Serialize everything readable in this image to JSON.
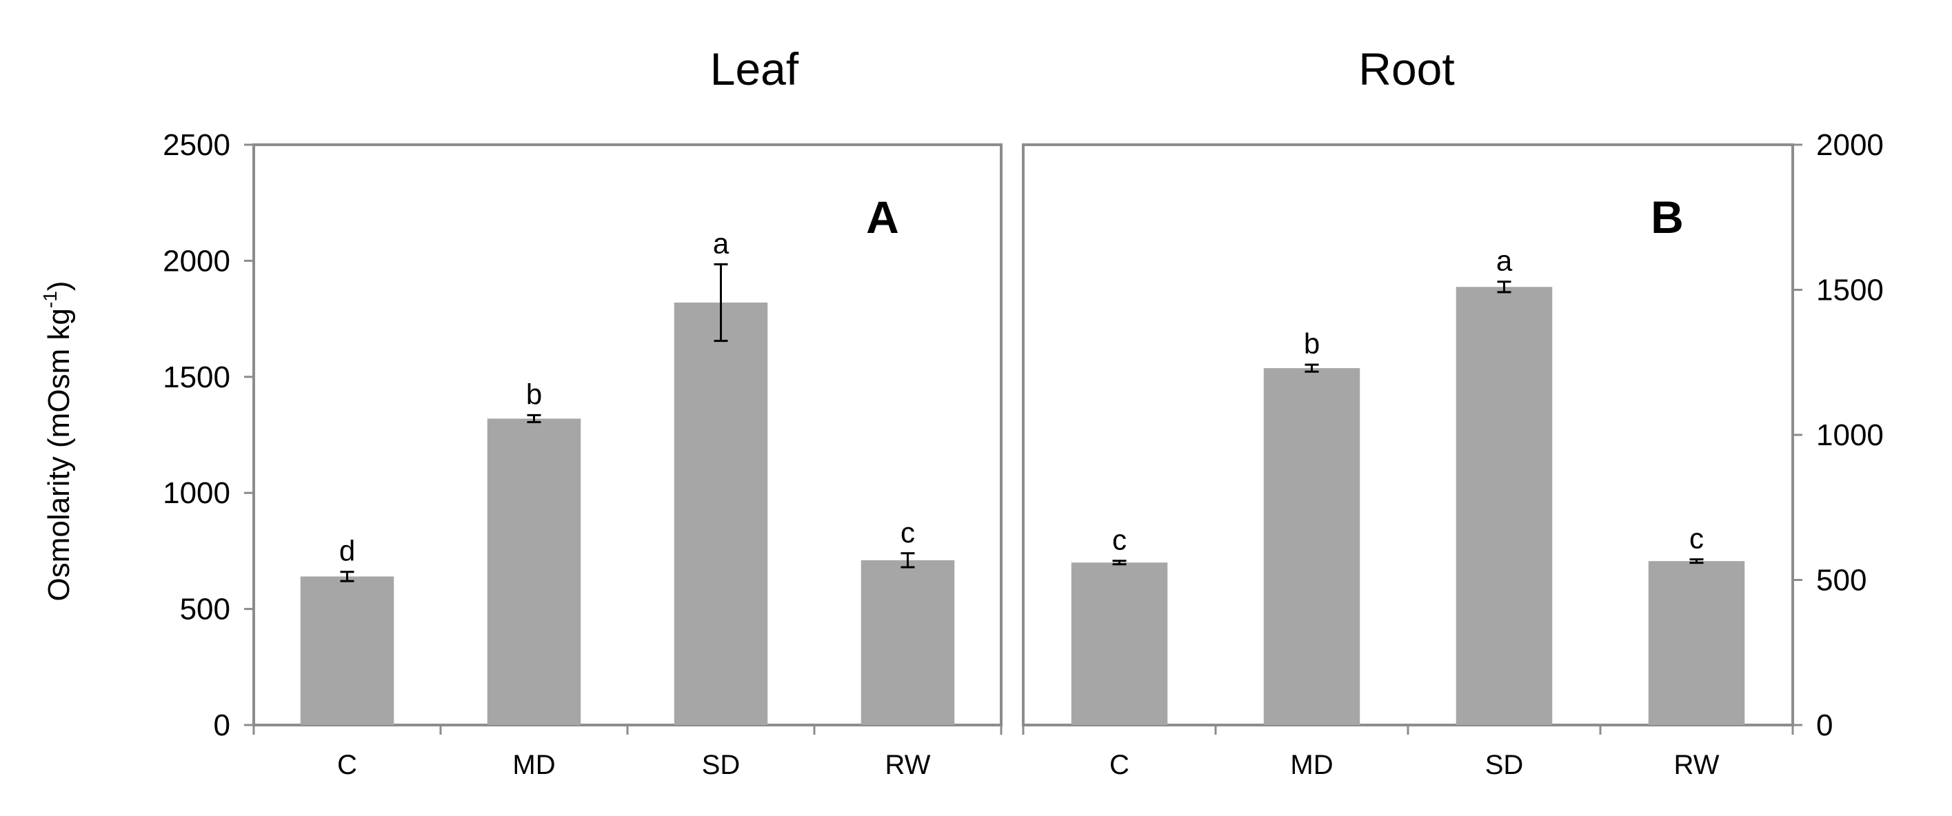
{
  "colors": {
    "bar": "#a6a6a6",
    "frame": "#8c8c8c",
    "axis": "#8c8c8c",
    "error_bar": "#000000",
    "text": "#000000"
  },
  "y_axis_title": {
    "main": "Osmolarity (mOsm kg",
    "sup": "-1",
    "close": ")"
  },
  "chart_data": [
    {
      "type": "bar",
      "title": "Leaf",
      "panel_label": "A",
      "categories": [
        "C",
        "MD",
        "SD",
        "RW"
      ],
      "values": [
        640,
        1320,
        1820,
        710
      ],
      "errors": [
        20,
        15,
        165,
        30
      ],
      "significance": [
        "d",
        "b",
        "a",
        "c"
      ],
      "ylim": [
        0,
        2500
      ],
      "yticks": [
        0,
        500,
        1000,
        1500,
        2000,
        2500
      ],
      "ylabel": "Osmolarity (mOsm kg-1)",
      "y_axis_side": "left",
      "grid": false
    },
    {
      "type": "bar",
      "title": "Root",
      "panel_label": "B",
      "categories": [
        "C",
        "MD",
        "SD",
        "RW"
      ],
      "values": [
        560,
        1230,
        1510,
        565
      ],
      "errors": [
        6,
        12,
        18,
        6
      ],
      "significance": [
        "c",
        "b",
        "a",
        "c"
      ],
      "ylim": [
        0,
        2000
      ],
      "yticks": [
        0,
        500,
        1000,
        1500,
        2000
      ],
      "ylabel": "",
      "y_axis_side": "right",
      "grid": false
    }
  ]
}
